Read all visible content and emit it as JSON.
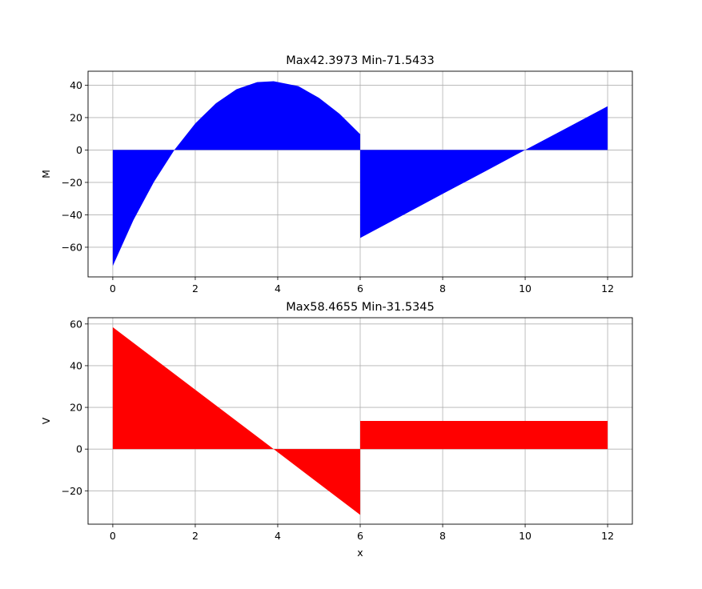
{
  "chart_data": [
    {
      "type": "area",
      "title": "Max42.3973 Min-71.5433",
      "xlabel": "",
      "ylabel": "M",
      "xlim": [
        -0.6,
        12.6
      ],
      "ylim": [
        -78.3,
        48.6
      ],
      "xticks": [
        0,
        2,
        4,
        6,
        8,
        10,
        12
      ],
      "yticks": [
        -60,
        -40,
        -20,
        0,
        20,
        40
      ],
      "grid": true,
      "color": "#0000ff",
      "series": [
        {
          "x": [
            0,
            0.5,
            1,
            1.5,
            2,
            2.5,
            3,
            3.5,
            3.9,
            4.5,
            5,
            5.5,
            6,
            6,
            7,
            8,
            9,
            10,
            11,
            12
          ],
          "y": [
            -71.5433,
            -43.3,
            -19.6,
            0.3,
            16.4,
            28.8,
            37.5,
            41.9,
            42.3973,
            39.4,
            32.2,
            22.3,
            9.7,
            -54.3,
            -40.7,
            -27.1,
            -13.6,
            0.0,
            13.5,
            27.0
          ]
        }
      ]
    },
    {
      "type": "area",
      "title": "Max58.4655 Min-31.5345",
      "xlabel": "x",
      "ylabel": "V",
      "xlim": [
        -0.6,
        12.6
      ],
      "ylim": [
        -36.0,
        63.0
      ],
      "xticks": [
        0,
        2,
        4,
        6,
        8,
        10,
        12
      ],
      "yticks": [
        -20,
        0,
        20,
        40,
        60
      ],
      "grid": true,
      "color": "#ff0000",
      "series": [
        {
          "x": [
            0,
            3.9,
            6,
            6,
            12
          ],
          "y": [
            58.4655,
            0.0,
            -31.5345,
            13.5,
            13.5
          ]
        }
      ]
    }
  ]
}
